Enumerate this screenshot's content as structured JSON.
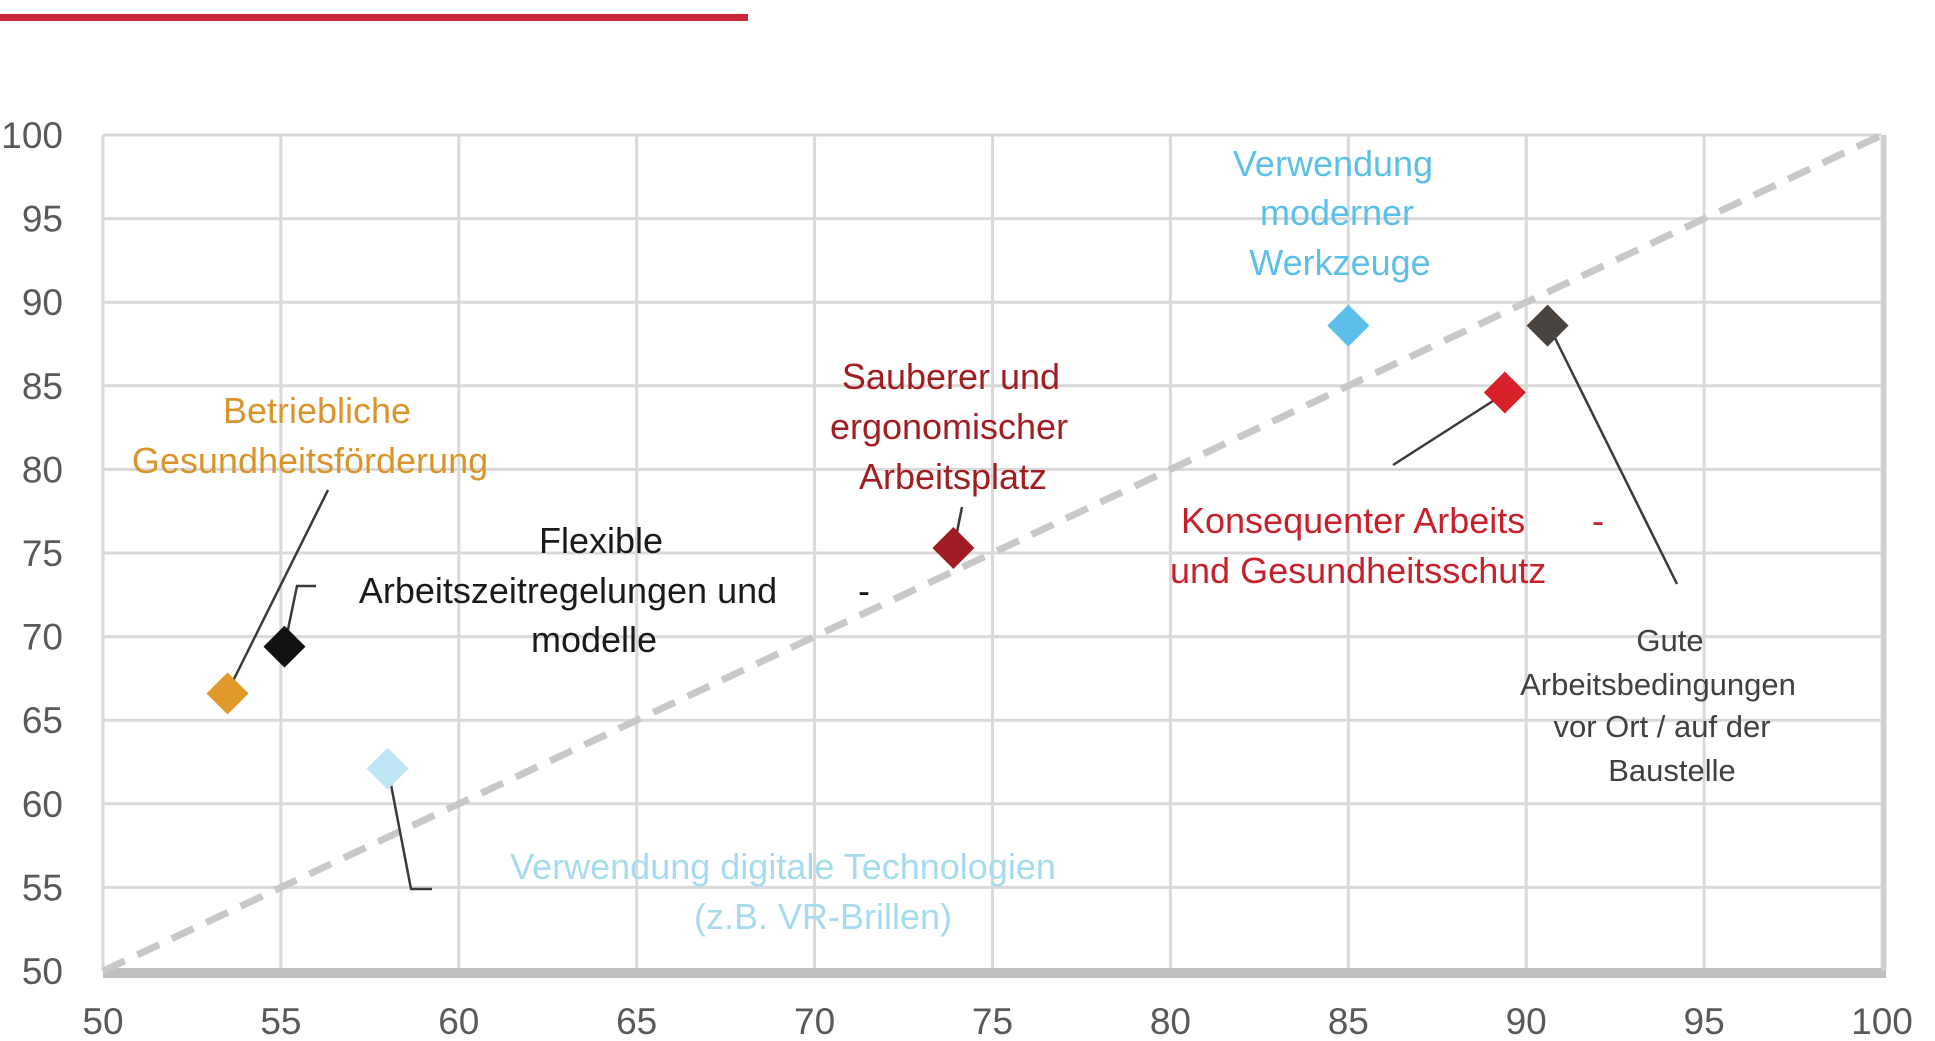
{
  "chart_data": {
    "type": "scatter",
    "title": "",
    "xlabel": "",
    "ylabel": "",
    "xlim": [
      50,
      100
    ],
    "ylim": [
      50,
      100
    ],
    "x_ticks": [
      "50",
      "55",
      "60",
      "65",
      "70",
      "75",
      "80",
      "85",
      "90",
      "95",
      "100"
    ],
    "y_ticks": [
      "50",
      "55",
      "60",
      "65",
      "70",
      "75",
      "80",
      "85",
      "90",
      "95",
      "100"
    ],
    "grid": true,
    "reference_line": {
      "from": [
        50,
        50
      ],
      "to": [
        100,
        100
      ],
      "style": "dashed",
      "color": "#c8c8c8"
    },
    "points": [
      {
        "name": "Betriebliche Gesundheitsförderung",
        "x": 53.5,
        "y": 66.6,
        "color": "#e09a2c",
        "label_lines": [
          "Betriebliche",
          "Gesundheitsförderung"
        ]
      },
      {
        "name": "Flexible Arbeitszeitregelungen und -modelle",
        "x": 55.1,
        "y": 69.4,
        "color": "#111111",
        "label_lines": [
          "Flexible",
          "Arbeitszeitregelungen und",
          "-",
          "modelle"
        ]
      },
      {
        "name": "Verwendung digitale Technologien (z.B. VR-Brillen)",
        "x": 58.0,
        "y": 62.1,
        "color": "#bfe6f4",
        "label_lines": [
          "Verwendung digitale Technologien",
          "(z.B. VR-Brillen)"
        ]
      },
      {
        "name": "Sauberer und ergonomischer Arbeitsplatz",
        "x": 73.9,
        "y": 75.3,
        "color": "#a01c22",
        "label_lines": [
          "Sauberer und",
          "ergonomischer",
          "Arbeitsplatz"
        ]
      },
      {
        "name": "Verwendung moderner Werkzeuge",
        "x": 85.0,
        "y": 88.6,
        "color": "#5bbfe9",
        "label_lines": [
          "Verwendung",
          "moderner",
          "Werkzeuge"
        ]
      },
      {
        "name": "Konsequenter Arbeits- und Gesundheitsschutz",
        "x": 89.4,
        "y": 84.6,
        "color": "#d8202a",
        "label_lines": [
          "Konsequenter Arbeits",
          "-",
          "und Gesundheitsschutz"
        ]
      },
      {
        "name": "Gute Arbeitsbedingungen vor Ort / auf der Baustelle",
        "x": 90.6,
        "y": 88.6,
        "color": "#4a4440",
        "label_lines": [
          "Gute",
          "Arbeitsbedingungen",
          "vor Ort / auf der",
          "Baustelle"
        ]
      }
    ],
    "label_colors": {
      "orange": "#d9952b",
      "black": "#1a1a1a",
      "lightblue": "#a6dbef",
      "darkred": "#a01e22",
      "blue": "#5bbfe9",
      "red": "#c8202a",
      "gray": "#404040"
    },
    "header_bar_color": "#c8283a"
  }
}
